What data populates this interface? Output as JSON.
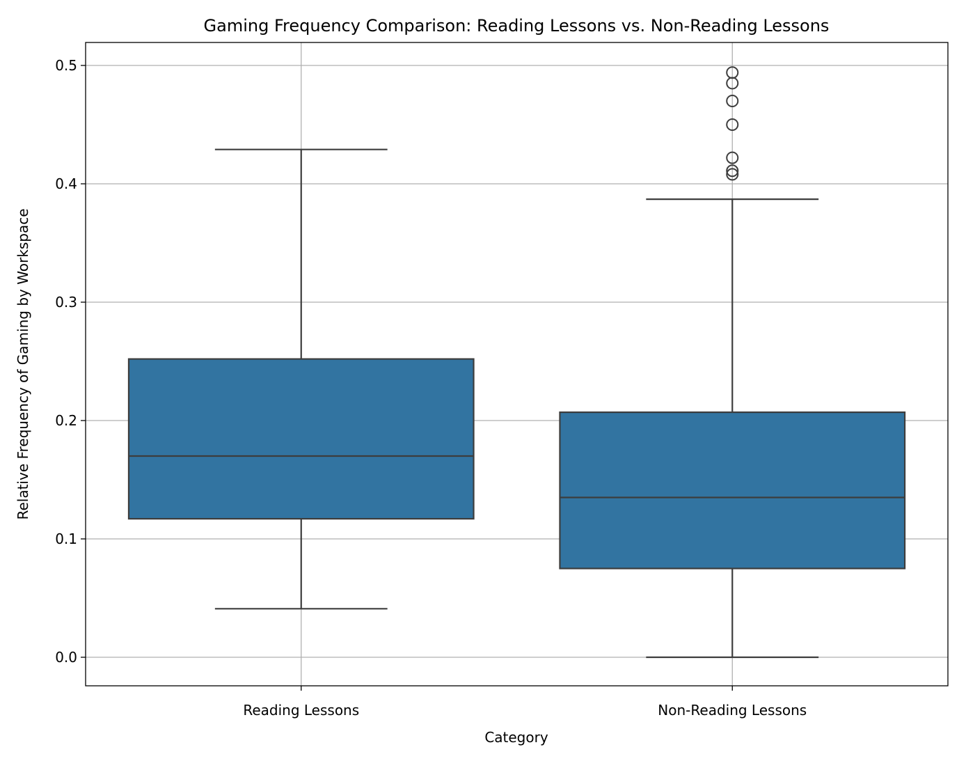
{
  "chart_data": {
    "type": "box",
    "title": "Gaming Frequency Comparison: Reading Lessons vs. Non-Reading Lessons",
    "xlabel": "Category",
    "ylabel": "Relative Frequency of Gaming by Workspace",
    "ylim": [
      -0.024,
      0.519
    ],
    "yticks": [
      0.0,
      0.1,
      0.2,
      0.3,
      0.4,
      0.5
    ],
    "ytick_labels": [
      "0.0",
      "0.1",
      "0.2",
      "0.3",
      "0.4",
      "0.5"
    ],
    "grid": true,
    "box_color": "#3274a1",
    "line_color": "#3d3d3d",
    "categories": [
      "Reading Lessons",
      "Non-Reading Lessons"
    ],
    "boxes": [
      {
        "name": "Reading Lessons",
        "whisker_low": 0.041,
        "q1": 0.117,
        "median": 0.17,
        "q3": 0.252,
        "whisker_high": 0.429,
        "outliers": []
      },
      {
        "name": "Non-Reading Lessons",
        "whisker_low": 0.0,
        "q1": 0.075,
        "median": 0.135,
        "q3": 0.207,
        "whisker_high": 0.387,
        "outliers": [
          0.494,
          0.485,
          0.47,
          0.45,
          0.422,
          0.411,
          0.408
        ]
      }
    ]
  }
}
